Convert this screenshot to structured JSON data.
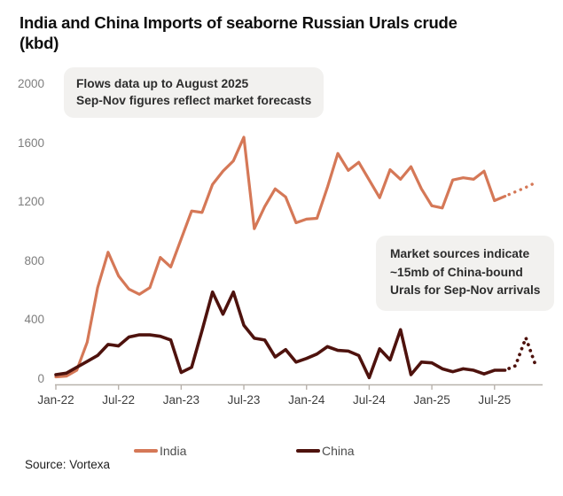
{
  "title": {
    "line1": "India and China Imports of seaborne Russian Urals crude",
    "line2": "(kbd)"
  },
  "annotations": {
    "flows": {
      "lines": [
        "Flows data up to August 2025",
        "Sep-Nov figures reflect market forecasts"
      ]
    },
    "market": {
      "lines": [
        "Market sources indicate",
        "~15mb of China-bound",
        "Urals for Sep-Nov arrivals"
      ]
    }
  },
  "source": "Source: Vortexa",
  "chart_data": {
    "type": "line",
    "title": "India and China Imports of seaborne Russian Urals crude (kbd)",
    "unit": "kbd",
    "grid": false,
    "legend_position": "bottom",
    "ylim": [
      0,
      2000
    ],
    "y_ticks": [
      0,
      400,
      800,
      1200,
      1600,
      2000
    ],
    "x": [
      "Jan-22",
      "Feb-22",
      "Mar-22",
      "Apr-22",
      "May-22",
      "Jun-22",
      "Jul-22",
      "Aug-22",
      "Sep-22",
      "Oct-22",
      "Nov-22",
      "Dec-22",
      "Jan-23",
      "Feb-23",
      "Mar-23",
      "Apr-23",
      "May-23",
      "Jun-23",
      "Jul-23",
      "Aug-23",
      "Sep-23",
      "Oct-23",
      "Nov-23",
      "Dec-23",
      "Jan-24",
      "Feb-24",
      "Mar-24",
      "Apr-24",
      "May-24",
      "Jun-24",
      "Jul-24",
      "Aug-24",
      "Sep-24",
      "Oct-24",
      "Nov-24",
      "Dec-24",
      "Jan-25",
      "Feb-25",
      "Mar-25",
      "Apr-25",
      "May-25",
      "Jun-25",
      "Jul-25",
      "Aug-25",
      "Sep-25",
      "Oct-25",
      "Nov-25"
    ],
    "x_ticks": [
      {
        "label": "Jan-22",
        "index": 0
      },
      {
        "label": "Jul-22",
        "index": 6
      },
      {
        "label": "Jan-23",
        "index": 12
      },
      {
        "label": "Jul-23",
        "index": 18
      },
      {
        "label": "Jan-24",
        "index": 24
      },
      {
        "label": "Jul-24",
        "index": 30
      },
      {
        "label": "Jan-25",
        "index": 36
      },
      {
        "label": "Jul-25",
        "index": 42
      }
    ],
    "forecast_from_index": 43,
    "forecast_note": "Sep-Nov 2025 shown as dotted market forecasts",
    "series": [
      {
        "name": "India",
        "color": "#D57857",
        "width": 3.2,
        "values": [
          15,
          20,
          60,
          250,
          620,
          860,
          700,
          610,
          575,
          620,
          825,
          760,
          950,
          1140,
          1130,
          1320,
          1410,
          1480,
          1640,
          1020,
          1170,
          1290,
          1235,
          1060,
          1085,
          1090,
          1300,
          1530,
          1415,
          1470,
          1350,
          1230,
          1420,
          1355,
          1440,
          1290,
          1175,
          1160,
          1350,
          1365,
          1355,
          1410,
          1210,
          1240,
          1270,
          1300,
          1335
        ]
      },
      {
        "name": "China",
        "color": "#4E120D",
        "width": 3.6,
        "values": [
          30,
          40,
          80,
          120,
          160,
          235,
          225,
          285,
          300,
          300,
          290,
          265,
          45,
          80,
          330,
          590,
          440,
          590,
          365,
          277,
          265,
          150,
          200,
          115,
          140,
          170,
          220,
          195,
          190,
          160,
          10,
          205,
          130,
          335,
          30,
          115,
          110,
          70,
          50,
          70,
          60,
          35,
          60,
          60,
          90,
          280,
          80
        ]
      }
    ],
    "colors": {
      "axis": "#b8b2ac",
      "x_labels": "#3d3d3d",
      "y_labels": "#7e7e7e"
    }
  }
}
